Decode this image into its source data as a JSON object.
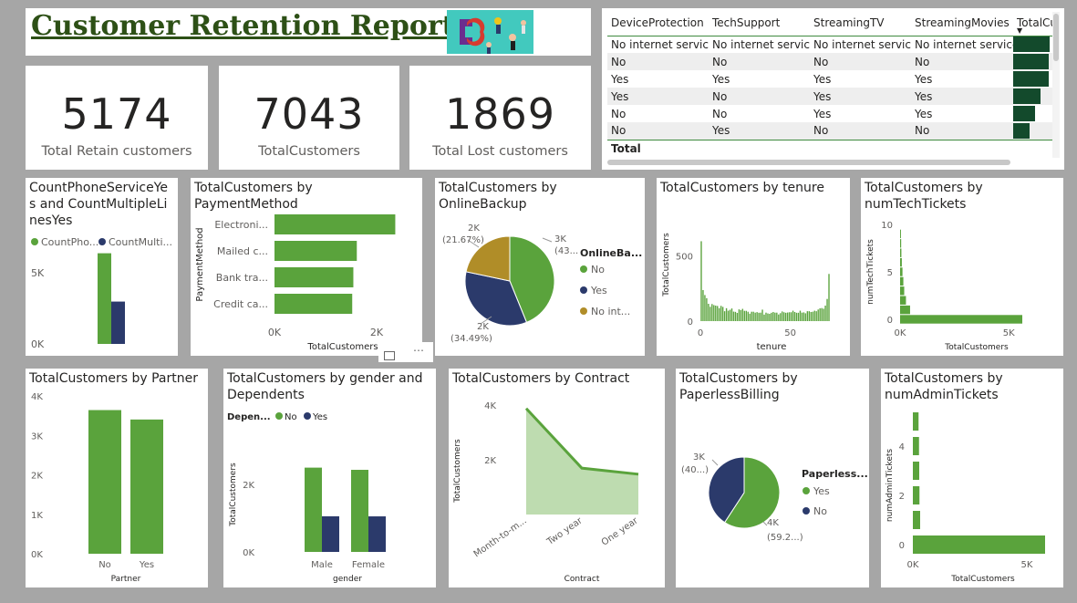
{
  "report": {
    "title": "Customer Retention Report",
    "image_icon": "customer-magnet-illustration"
  },
  "kpis": [
    {
      "value": "5174",
      "label": "Total Retain customers"
    },
    {
      "value": "7043",
      "label": "TotalCustomers"
    },
    {
      "value": "1869",
      "label": "Total Lost customers"
    }
  ],
  "table": {
    "columns": [
      "DeviceProtection",
      "TechSupport",
      "StreamingTV",
      "StreamingMovies",
      "TotalCu"
    ],
    "rows": [
      [
        "No internet service",
        "No internet service",
        "No internet service",
        "No internet service"
      ],
      [
        "No",
        "No",
        "No",
        "No"
      ],
      [
        "Yes",
        "Yes",
        "Yes",
        "Yes"
      ],
      [
        "Yes",
        "No",
        "Yes",
        "Yes"
      ],
      [
        "No",
        "No",
        "Yes",
        "Yes"
      ],
      [
        "No",
        "Yes",
        "No",
        "No"
      ]
    ],
    "bar_levels": [
      1.0,
      0.98,
      0.98,
      0.76,
      0.61,
      0.46
    ],
    "total_label": "Total"
  },
  "colors": {
    "green": "#5aa33c",
    "navy": "#2b3a6b",
    "olive": "#b08d28",
    "dark_green": "#134a2c",
    "light_green_fill": "#bedcb0"
  },
  "visual_titles": {
    "phone": "CountPhoneServiceYes and CountMultipleLinesYes",
    "payment": "TotalCustomers by PaymentMethod",
    "backup": "TotalCustomers by OnlineBackup",
    "tenure": "TotalCustomers by tenure",
    "techtickets": "TotalCustomers by numTechTickets",
    "partner": "TotalCustomers by Partner",
    "gender": "TotalCustomers by gender and Dependents",
    "contract": "TotalCustomers by Contract",
    "paperless": "TotalCustomers by PaperlessBilling",
    "admintickets": "TotalCustomers by numAdminTickets"
  },
  "chart_data": [
    {
      "id": "phone",
      "type": "bar",
      "title": "CountPhoneServiceYes and CountMultipleLinesYes",
      "legend": [
        "CountPho...",
        "CountMulti..."
      ],
      "legend_position": "top-left",
      "yticks": [
        "5K",
        "0K"
      ],
      "ylim": [
        0,
        8000
      ],
      "series": [
        {
          "name": "CountPhoneServiceYes",
          "values": [
            6361
          ]
        },
        {
          "name": "CountMultipleLinesYes",
          "values": [
            2971
          ]
        }
      ]
    },
    {
      "id": "payment",
      "type": "bar",
      "orientation": "horizontal",
      "title": "TotalCustomers by PaymentMethod",
      "ylabel": "PaymentMethod",
      "xlabel": "TotalCustomers",
      "categories": [
        "Electroni...",
        "Mailed c...",
        "Bank tra...",
        "Credit ca..."
      ],
      "values": [
        2365,
        1612,
        1544,
        1522
      ],
      "xticks": [
        "0K",
        "2K"
      ],
      "xlim": [
        0,
        2500
      ]
    },
    {
      "id": "backup",
      "type": "pie",
      "title": "TotalCustomers by OnlineBackup",
      "legend_title": "OnlineBa...",
      "legend_position": "right",
      "categories": [
        "No",
        "Yes",
        "No int..."
      ],
      "values": [
        3088,
        2429,
        1526
      ],
      "data_labels": [
        [
          "3K",
          "(43..."
        ],
        [
          "2K",
          "(34.49%)"
        ],
        [
          "2K",
          "(21.67%)"
        ]
      ]
    },
    {
      "id": "tenure",
      "type": "bar",
      "title": "TotalCustomers by tenure",
      "xlabel": "tenure",
      "ylabel": "TotalCustomers",
      "xticks": [
        "0",
        "50"
      ],
      "yticks": [
        "500",
        "0"
      ],
      "xlim": [
        0,
        72
      ],
      "ylim": [
        0,
        700
      ],
      "x": [
        1,
        2,
        3,
        4,
        5,
        6,
        7,
        8,
        9,
        10,
        11,
        12,
        13,
        14,
        15,
        16,
        17,
        18,
        19,
        20,
        21,
        22,
        23,
        24,
        25,
        26,
        27,
        28,
        29,
        30,
        31,
        32,
        33,
        34,
        35,
        36,
        37,
        38,
        39,
        40,
        41,
        42,
        43,
        44,
        45,
        46,
        47,
        48,
        49,
        50,
        51,
        52,
        53,
        54,
        55,
        56,
        57,
        58,
        59,
        60,
        61,
        62,
        63,
        64,
        65,
        66,
        67,
        68,
        69,
        70,
        71,
        72
      ],
      "values": [
        613,
        238,
        200,
        176,
        133,
        110,
        131,
        123,
        119,
        116,
        99,
        117,
        109,
        76,
        99,
        80,
        87,
        97,
        73,
        71,
        63,
        90,
        85,
        94,
        79,
        79,
        72,
        57,
        72,
        72,
        65,
        69,
        64,
        65,
        88,
        50,
        65,
        59,
        56,
        64,
        70,
        65,
        65,
        51,
        61,
        74,
        68,
        64,
        66,
        68,
        68,
        80,
        70,
        64,
        64,
        80,
        65,
        67,
        60,
        76,
        76,
        70,
        72,
        80,
        76,
        89,
        98,
        100,
        95,
        119,
        170,
        362
      ]
    },
    {
      "id": "techtickets",
      "type": "bar",
      "orientation": "horizontal",
      "title": "TotalCustomers by numTechTickets",
      "ylabel": "numTechTickets",
      "xlabel": "TotalCustomers",
      "yticks": [
        "10",
        "5",
        "0"
      ],
      "xticks": [
        "0K",
        "5K"
      ],
      "categories": [
        0,
        1,
        2,
        3,
        4,
        5,
        6,
        7,
        8,
        9
      ],
      "values": [
        5620,
        460,
        270,
        190,
        150,
        110,
        80,
        60,
        50,
        40
      ],
      "xlim": [
        0,
        6500
      ]
    },
    {
      "id": "partner",
      "type": "bar",
      "title": "TotalCustomers by Partner",
      "xlabel": "Partner",
      "categories": [
        "No",
        "Yes"
      ],
      "values": [
        3641,
        3402
      ],
      "yticks": [
        "4K",
        "3K",
        "2K",
        "1K",
        "0K"
      ],
      "ylim": [
        0,
        4000
      ]
    },
    {
      "id": "gender",
      "type": "bar",
      "title": "TotalCustomers by gender and Dependents",
      "legend_title": "Depen...",
      "legend_position": "top-left",
      "xlabel": "gender",
      "ylabel": "TotalCustomers",
      "categories": [
        "Male",
        "Female"
      ],
      "yticks": [
        "2K",
        "0K"
      ],
      "ylim": [
        0,
        3300
      ],
      "series": [
        {
          "name": "No",
          "values": [
            2499,
            2434
          ]
        },
        {
          "name": "Yes",
          "values": [
            1056,
            1054
          ]
        }
      ]
    },
    {
      "id": "contract",
      "type": "area",
      "title": "TotalCustomers by Contract",
      "xlabel": "Contract",
      "ylabel": "TotalCustomers",
      "categories": [
        "Month-to-m...",
        "Two year",
        "One year"
      ],
      "values": [
        3875,
        1695,
        1473
      ],
      "yticks": [
        "4K",
        "2K"
      ],
      "ylim": [
        0,
        4300
      ]
    },
    {
      "id": "paperless",
      "type": "pie",
      "title": "TotalCustomers by PaperlessBilling",
      "legend_title": "Paperless...",
      "legend_position": "right",
      "categories": [
        "Yes",
        "No"
      ],
      "values": [
        4171,
        2872
      ],
      "data_labels": [
        [
          "4K",
          "(59.2...)"
        ],
        [
          "3K",
          "(40...)"
        ]
      ]
    },
    {
      "id": "admintickets",
      "type": "bar",
      "orientation": "horizontal",
      "title": "TotalCustomers by numAdminTickets",
      "ylabel": "numAdminTickets",
      "xlabel": "TotalCustomers",
      "yticks": [
        "4",
        "2",
        "0"
      ],
      "xticks": [
        "0K",
        "5K"
      ],
      "categories": [
        0,
        1,
        2,
        3,
        4,
        5
      ],
      "values": [
        5800,
        320,
        290,
        280,
        270,
        250
      ],
      "xlim": [
        0,
        6000
      ]
    }
  ]
}
